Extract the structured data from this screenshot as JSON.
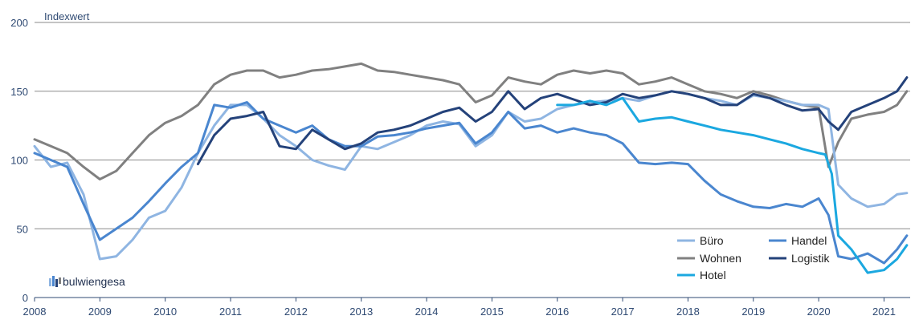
{
  "chart_data": {
    "type": "line",
    "ylabel": "Indexwert",
    "xlim": [
      2008,
      2021.4
    ],
    "ylim": [
      0,
      200
    ],
    "yticks": [
      0,
      50,
      100,
      150,
      200
    ],
    "xticks": [
      "2008",
      "2009",
      "2010",
      "2011",
      "2012",
      "2013",
      "2014",
      "2015",
      "2016",
      "2017",
      "2018",
      "2019",
      "2020",
      "2021"
    ],
    "grid": "horizontal",
    "legend": "bottom-right",
    "brand": "bulwiengesa",
    "series": [
      {
        "name": "Büro",
        "color": "#8fb5e2",
        "x": [
          2008,
          2008.25,
          2008.5,
          2008.75,
          2009,
          2009.25,
          2009.5,
          2009.75,
          2010,
          2010.25,
          2010.5,
          2010.75,
          2011,
          2011.25,
          2011.5,
          2011.75,
          2012,
          2012.25,
          2012.5,
          2012.75,
          2013,
          2013.25,
          2013.5,
          2013.75,
          2014,
          2014.25,
          2014.5,
          2014.75,
          2015,
          2015.25,
          2015.5,
          2015.75,
          2016,
          2016.25,
          2016.5,
          2016.75,
          2017,
          2017.25,
          2017.5,
          2017.75,
          2018,
          2018.25,
          2018.5,
          2018.75,
          2019,
          2019.25,
          2019.5,
          2019.75,
          2020,
          2020.15,
          2020.3,
          2020.5,
          2020.75,
          2021,
          2021.2,
          2021.35
        ],
        "y": [
          110,
          95,
          98,
          75,
          28,
          30,
          42,
          58,
          63,
          80,
          105,
          125,
          140,
          140,
          130,
          118,
          110,
          100,
          96,
          93,
          110,
          108,
          113,
          118,
          125,
          128,
          126,
          110,
          118,
          135,
          128,
          130,
          137,
          140,
          142,
          143,
          145,
          143,
          147,
          150,
          148,
          145,
          143,
          140,
          147,
          145,
          143,
          140,
          140,
          137,
          82,
          72,
          66,
          68,
          75,
          76
        ]
      },
      {
        "name": "Wohnen",
        "color": "#808080",
        "x": [
          2008,
          2008.25,
          2008.5,
          2008.75,
          2009,
          2009.25,
          2009.5,
          2009.75,
          2010,
          2010.25,
          2010.5,
          2010.75,
          2011,
          2011.25,
          2011.5,
          2011.75,
          2012,
          2012.25,
          2012.5,
          2012.75,
          2013,
          2013.25,
          2013.5,
          2013.75,
          2014,
          2014.25,
          2014.5,
          2014.75,
          2015,
          2015.25,
          2015.5,
          2015.75,
          2016,
          2016.25,
          2016.5,
          2016.75,
          2017,
          2017.25,
          2017.5,
          2017.75,
          2018,
          2018.25,
          2018.5,
          2018.75,
          2019,
          2019.25,
          2019.5,
          2019.75,
          2020,
          2020.15,
          2020.3,
          2020.5,
          2020.75,
          2021,
          2021.2,
          2021.35
        ],
        "y": [
          115,
          110,
          105,
          95,
          86,
          92,
          105,
          118,
          127,
          132,
          140,
          155,
          162,
          165,
          165,
          160,
          162,
          165,
          166,
          168,
          170,
          165,
          164,
          162,
          160,
          158,
          155,
          142,
          147,
          160,
          157,
          155,
          162,
          165,
          163,
          165,
          163,
          155,
          157,
          160,
          155,
          150,
          148,
          145,
          150,
          147,
          143,
          140,
          138,
          95,
          113,
          130,
          133,
          135,
          140,
          150
        ]
      },
      {
        "name": "Hotel",
        "color": "#1ba8e0",
        "x": [
          2016,
          2016.25,
          2016.5,
          2016.75,
          2017,
          2017.25,
          2017.5,
          2017.75,
          2018,
          2018.25,
          2018.5,
          2018.75,
          2019,
          2019.25,
          2019.5,
          2019.75,
          2020,
          2020.1,
          2020.2,
          2020.3,
          2020.5,
          2020.75,
          2021,
          2021.2,
          2021.35
        ],
        "y": [
          140,
          140,
          143,
          140,
          145,
          128,
          130,
          131,
          128,
          125,
          122,
          120,
          118,
          115,
          112,
          108,
          105,
          104,
          90,
          45,
          35,
          18,
          20,
          28,
          38
        ]
      },
      {
        "name": "Handel",
        "color": "#4a86cf",
        "x": [
          2008,
          2008.25,
          2008.5,
          2008.75,
          2009,
          2009.25,
          2009.5,
          2009.75,
          2010,
          2010.25,
          2010.5,
          2010.75,
          2011,
          2011.25,
          2011.5,
          2011.75,
          2012,
          2012.25,
          2012.5,
          2012.75,
          2013,
          2013.25,
          2013.5,
          2013.75,
          2014,
          2014.25,
          2014.5,
          2014.75,
          2015,
          2015.25,
          2015.5,
          2015.75,
          2016,
          2016.25,
          2016.5,
          2016.75,
          2017,
          2017.25,
          2017.5,
          2017.75,
          2018,
          2018.25,
          2018.5,
          2018.75,
          2019,
          2019.25,
          2019.5,
          2019.75,
          2020,
          2020.15,
          2020.3,
          2020.5,
          2020.75,
          2021,
          2021.2,
          2021.35
        ],
        "y": [
          105,
          100,
          95,
          68,
          42,
          50,
          58,
          70,
          83,
          95,
          105,
          140,
          138,
          142,
          130,
          125,
          120,
          125,
          115,
          110,
          110,
          117,
          118,
          120,
          123,
          125,
          127,
          112,
          120,
          135,
          123,
          125,
          120,
          123,
          120,
          118,
          112,
          98,
          97,
          98,
          97,
          85,
          75,
          70,
          66,
          65,
          68,
          66,
          72,
          60,
          30,
          28,
          32,
          25,
          35,
          45
        ]
      },
      {
        "name": "Logistik",
        "color": "#24427a",
        "x": [
          2010.5,
          2010.75,
          2011,
          2011.25,
          2011.5,
          2011.75,
          2012,
          2012.25,
          2012.5,
          2012.75,
          2013,
          2013.25,
          2013.5,
          2013.75,
          2014,
          2014.25,
          2014.5,
          2014.75,
          2015,
          2015.25,
          2015.5,
          2015.75,
          2016,
          2016.25,
          2016.5,
          2016.75,
          2017,
          2017.25,
          2017.5,
          2017.75,
          2018,
          2018.25,
          2018.5,
          2018.75,
          2019,
          2019.25,
          2019.5,
          2019.75,
          2020,
          2020.15,
          2020.3,
          2020.5,
          2020.75,
          2021,
          2021.2,
          2021.35
        ],
        "y": [
          97,
          118,
          130,
          132,
          135,
          110,
          108,
          122,
          115,
          108,
          112,
          120,
          122,
          125,
          130,
          135,
          138,
          128,
          135,
          150,
          137,
          145,
          148,
          144,
          140,
          142,
          148,
          145,
          147,
          150,
          148,
          145,
          140,
          140,
          148,
          145,
          140,
          136,
          137,
          128,
          122,
          135,
          140,
          145,
          150,
          160
        ]
      }
    ]
  }
}
